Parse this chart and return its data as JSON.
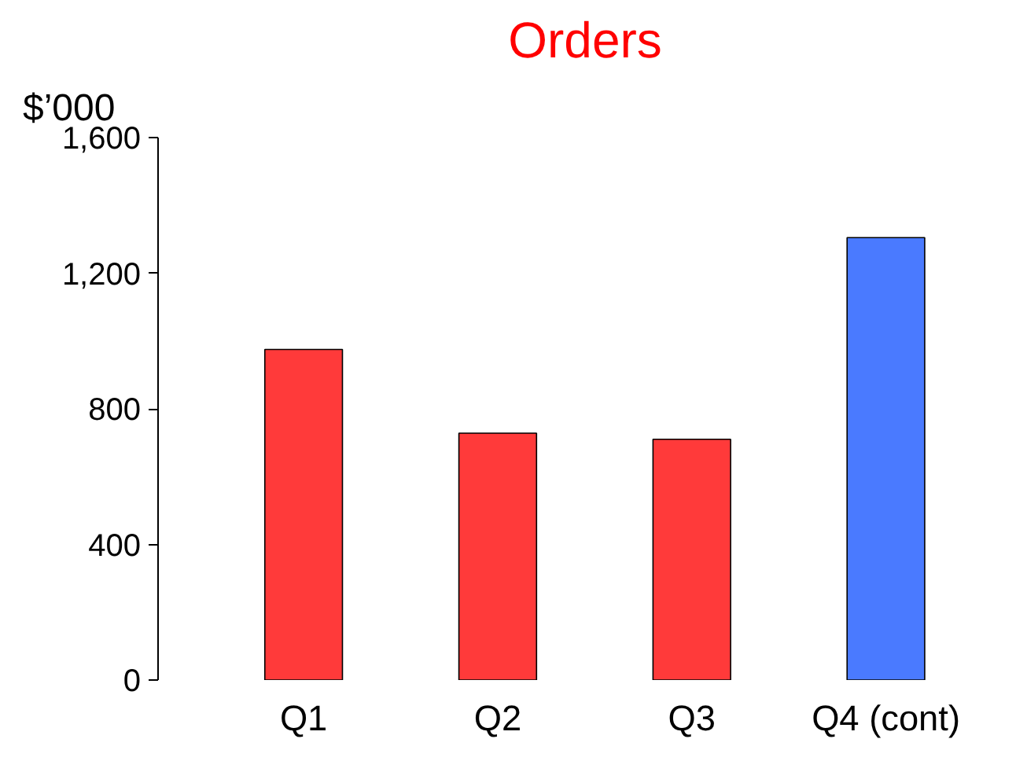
{
  "chart_data": {
    "type": "bar",
    "title": "Orders",
    "ylabel": "$’000",
    "categories": [
      "Q1",
      "Q2",
      "Q3",
      "Q4 (cont)"
    ],
    "values": [
      975,
      728,
      710,
      1305
    ],
    "colors": [
      "#ff3a3a",
      "#ff3a3a",
      "#ff3a3a",
      "#4a7aff"
    ],
    "ylim": [
      0,
      1600
    ],
    "yticks": [
      0,
      {
        "value": 400,
        "label": "400"
      },
      {
        "value": 800,
        "label": "800"
      },
      {
        "value": 1200,
        "label": "1,200"
      },
      {
        "value": 1600,
        "label": "1,600"
      }
    ],
    "grid": false
  }
}
